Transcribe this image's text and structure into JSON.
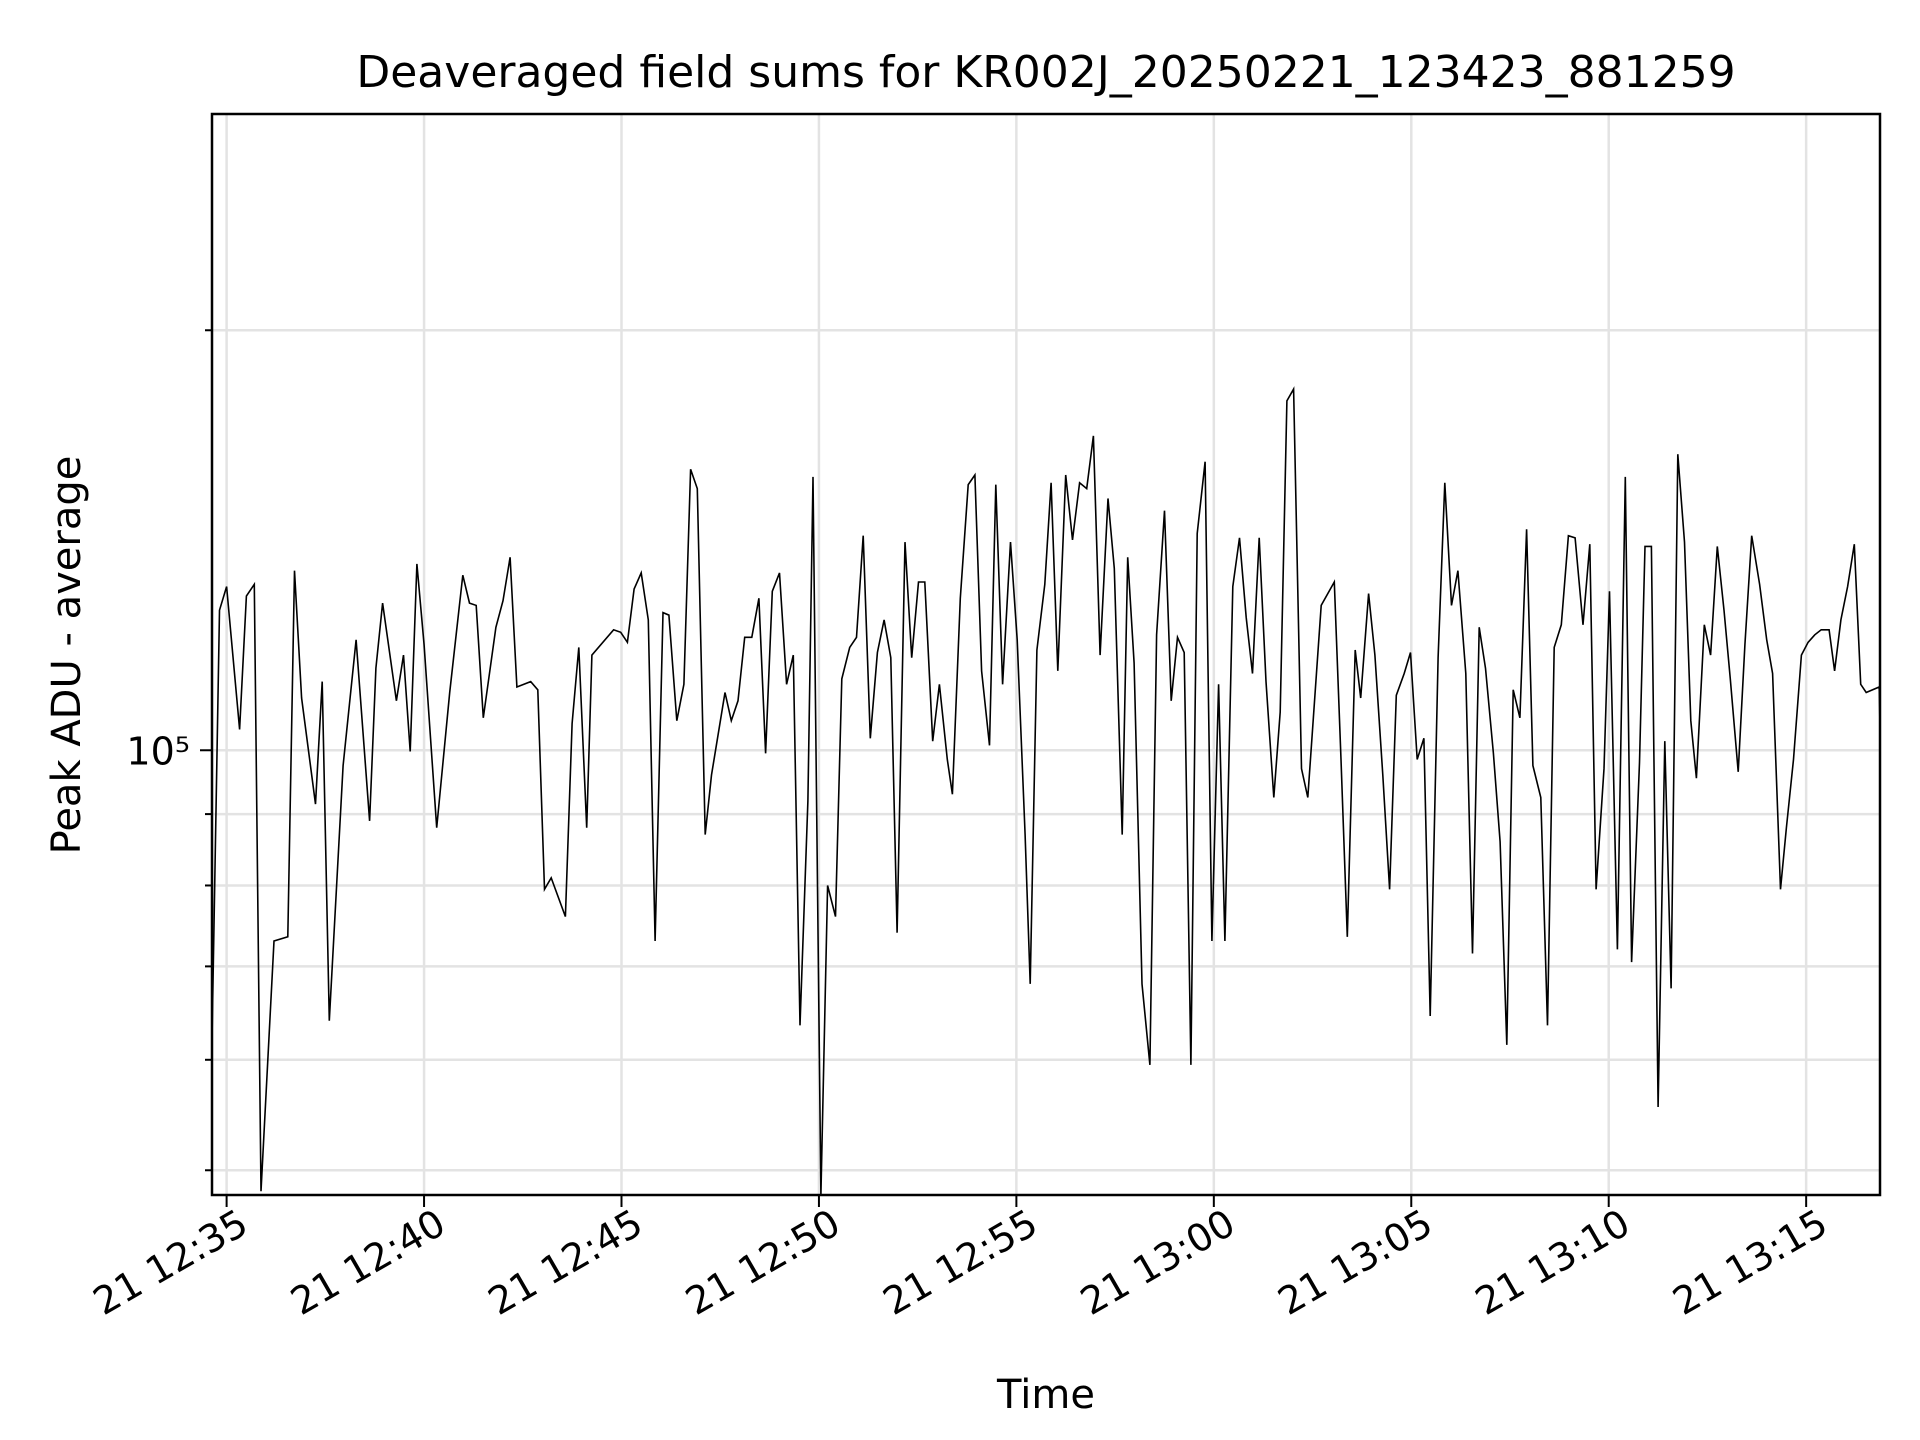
{
  "chart_data": {
    "type": "line",
    "title": "Deaveraged field sums for KR002J_20250221_123423_881259",
    "xlabel": "Time",
    "ylabel": "Peak ADU - average",
    "y_scale": "log",
    "grid": true,
    "x_tick_labels": [
      "21 12:35",
      "21 12:40",
      "21 12:45",
      "21 12:50",
      "21 12:55",
      "21 13:00",
      "21 13:05",
      "21 13:10",
      "21 13:15"
    ],
    "x_tick_minutes": [
      35,
      40,
      45,
      50,
      55,
      60,
      65,
      70,
      75
    ],
    "xlim_minutes": [
      34.63,
      76.87
    ],
    "y_tick_label": "10⁵",
    "y_tick_value": 100000,
    "ylim": [
      48000,
      200000
    ],
    "y_minor_ticks": [
      50000,
      60000,
      70000,
      80000,
      90000,
      200000
    ],
    "y_minor_visible": [
      50000,
      60000,
      70000,
      80000,
      90000,
      200000,
      300000,
      400000,
      500000
    ],
    "series": [
      {
        "color": "#000000",
        "points": [
          [
            34.63,
            62000
          ],
          [
            34.82,
            126000
          ],
          [
            35.0,
            131000
          ],
          [
            35.33,
            103500
          ],
          [
            35.5,
            129000
          ],
          [
            35.7,
            131500
          ],
          [
            35.87,
            48300
          ],
          [
            36.2,
            73000
          ],
          [
            36.55,
            73500
          ],
          [
            36.72,
            134500
          ],
          [
            36.9,
            109000
          ],
          [
            37.25,
            91500
          ],
          [
            37.42,
            112000
          ],
          [
            37.6,
            64000
          ],
          [
            37.95,
            97500
          ],
          [
            38.28,
            120000
          ],
          [
            38.62,
            89000
          ],
          [
            38.78,
            114500
          ],
          [
            38.95,
            127500
          ],
          [
            39.3,
            108500
          ],
          [
            39.48,
            117000
          ],
          [
            39.65,
            99800
          ],
          [
            39.82,
            136000
          ],
          [
            40.0,
            119000
          ],
          [
            40.32,
            88000
          ],
          [
            40.65,
            110000
          ],
          [
            40.98,
            133500
          ],
          [
            41.15,
            127500
          ],
          [
            41.32,
            127000
          ],
          [
            41.5,
            105500
          ],
          [
            41.82,
            122500
          ],
          [
            42.0,
            128000
          ],
          [
            42.18,
            137500
          ],
          [
            42.35,
            111000
          ],
          [
            42.7,
            112000
          ],
          [
            42.88,
            110500
          ],
          [
            43.05,
            79500
          ],
          [
            43.22,
            81000
          ],
          [
            43.58,
            76000
          ],
          [
            43.75,
            104500
          ],
          [
            43.92,
            118500
          ],
          [
            44.12,
            88000
          ],
          [
            44.25,
            117000
          ],
          [
            44.8,
            122000
          ],
          [
            44.98,
            121500
          ],
          [
            45.15,
            119500
          ],
          [
            45.32,
            130500
          ],
          [
            45.5,
            134000
          ],
          [
            45.68,
            124000
          ],
          [
            45.85,
            73000
          ],
          [
            46.05,
            125500
          ],
          [
            46.2,
            125000
          ],
          [
            46.4,
            105000
          ],
          [
            46.58,
            111500
          ],
          [
            46.75,
            159000
          ],
          [
            46.92,
            154000
          ],
          [
            47.12,
            87000
          ],
          [
            47.28,
            96000
          ],
          [
            47.62,
            110000
          ],
          [
            47.78,
            105000
          ],
          [
            47.95,
            108500
          ],
          [
            48.12,
            120500
          ],
          [
            48.3,
            120500
          ],
          [
            48.48,
            128500
          ],
          [
            48.65,
            99500
          ],
          [
            48.82,
            130000
          ],
          [
            49.0,
            134000
          ],
          [
            49.18,
            111500
          ],
          [
            49.35,
            117000
          ],
          [
            49.52,
            63500
          ],
          [
            49.72,
            92000
          ],
          [
            49.85,
            157000
          ],
          [
            50.05,
            48000
          ],
          [
            50.22,
            80000
          ],
          [
            50.42,
            76000
          ],
          [
            50.58,
            112500
          ],
          [
            50.78,
            118500
          ],
          [
            50.95,
            120500
          ],
          [
            51.12,
            142500
          ],
          [
            51.3,
            102000
          ],
          [
            51.48,
            117500
          ],
          [
            51.65,
            124000
          ],
          [
            51.82,
            116500
          ],
          [
            51.98,
            74000
          ],
          [
            52.18,
            141000
          ],
          [
            52.35,
            116500
          ],
          [
            52.52,
            132000
          ],
          [
            52.68,
            132000
          ],
          [
            52.88,
            101500
          ],
          [
            53.05,
            111500
          ],
          [
            53.25,
            98500
          ],
          [
            53.38,
            93000
          ],
          [
            53.58,
            128500
          ],
          [
            53.78,
            155000
          ],
          [
            53.95,
            157500
          ],
          [
            54.12,
            114000
          ],
          [
            54.32,
            100800
          ],
          [
            54.48,
            155000
          ],
          [
            54.65,
            111500
          ],
          [
            54.85,
            141000
          ],
          [
            55.02,
            120000
          ],
          [
            55.22,
            87000
          ],
          [
            55.35,
            68000
          ],
          [
            55.52,
            118000
          ],
          [
            55.72,
            131500
          ],
          [
            55.88,
            155500
          ],
          [
            56.05,
            114000
          ],
          [
            56.25,
            157500
          ],
          [
            56.42,
            141500
          ],
          [
            56.6,
            155500
          ],
          [
            56.78,
            154000
          ],
          [
            56.95,
            168000
          ],
          [
            57.12,
            117000
          ],
          [
            57.32,
            151500
          ],
          [
            57.48,
            135000
          ],
          [
            57.68,
            87000
          ],
          [
            57.82,
            137500
          ],
          [
            57.98,
            115500
          ],
          [
            58.18,
            68000
          ],
          [
            58.38,
            59500
          ],
          [
            58.55,
            121000
          ],
          [
            58.75,
            148500
          ],
          [
            58.92,
            108500
          ],
          [
            59.08,
            120500
          ],
          [
            59.25,
            117500
          ],
          [
            59.42,
            59500
          ],
          [
            59.58,
            143000
          ],
          [
            59.78,
            161000
          ],
          [
            59.95,
            73000
          ],
          [
            60.12,
            111500
          ],
          [
            60.28,
            73000
          ],
          [
            60.48,
            131000
          ],
          [
            60.65,
            142000
          ],
          [
            60.82,
            124500
          ],
          [
            60.98,
            113500
          ],
          [
            61.15,
            142000
          ],
          [
            61.32,
            112000
          ],
          [
            61.52,
            92500
          ],
          [
            61.68,
            106500
          ],
          [
            61.85,
            178000
          ],
          [
            62.02,
            181500
          ],
          [
            62.22,
            97000
          ],
          [
            62.38,
            92500
          ],
          [
            62.72,
            127000
          ],
          [
            63.05,
            132000
          ],
          [
            63.22,
            98500
          ],
          [
            63.38,
            73500
          ],
          [
            63.58,
            118000
          ],
          [
            63.72,
            109000
          ],
          [
            63.92,
            129500
          ],
          [
            64.08,
            117000
          ],
          [
            64.28,
            96000
          ],
          [
            64.45,
            79500
          ],
          [
            64.62,
            109500
          ],
          [
            64.82,
            113500
          ],
          [
            64.98,
            117500
          ],
          [
            65.15,
            98500
          ],
          [
            65.32,
            102000
          ],
          [
            65.48,
            64500
          ],
          [
            65.68,
            116500
          ],
          [
            65.85,
            155500
          ],
          [
            66.02,
            127000
          ],
          [
            66.18,
            134500
          ],
          [
            66.38,
            113500
          ],
          [
            66.55,
            71500
          ],
          [
            66.72,
            122500
          ],
          [
            66.88,
            114500
          ],
          [
            67.08,
            99500
          ],
          [
            67.25,
            86000
          ],
          [
            67.42,
            61500
          ],
          [
            67.58,
            110500
          ],
          [
            67.75,
            105500
          ],
          [
            67.92,
            144000
          ],
          [
            68.08,
            97500
          ],
          [
            68.28,
            92500
          ],
          [
            68.45,
            63500
          ],
          [
            68.62,
            118500
          ],
          [
            68.8,
            123000
          ],
          [
            68.98,
            142500
          ],
          [
            69.15,
            142000
          ],
          [
            69.35,
            123000
          ],
          [
            69.52,
            140500
          ],
          [
            69.68,
            79500
          ],
          [
            69.88,
            97000
          ],
          [
            70.02,
            130000
          ],
          [
            70.22,
            72000
          ],
          [
            70.42,
            157000
          ],
          [
            70.58,
            70500
          ],
          [
            70.78,
            98000
          ],
          [
            70.92,
            140000
          ],
          [
            71.08,
            140000
          ],
          [
            71.25,
            55500
          ],
          [
            71.42,
            101500
          ],
          [
            71.58,
            67500
          ],
          [
            71.75,
            163000
          ],
          [
            71.92,
            141000
          ],
          [
            72.08,
            105000
          ],
          [
            72.22,
            95500
          ],
          [
            72.42,
            123000
          ],
          [
            72.58,
            117000
          ],
          [
            72.75,
            140000
          ],
          [
            72.92,
            126000
          ],
          [
            73.08,
            112500
          ],
          [
            73.28,
            96500
          ],
          [
            73.45,
            119000
          ],
          [
            73.62,
            142500
          ],
          [
            73.82,
            131500
          ],
          [
            74.0,
            120000
          ],
          [
            74.15,
            113500
          ],
          [
            74.35,
            79500
          ],
          [
            74.5,
            88000
          ],
          [
            74.68,
            98500
          ],
          [
            74.88,
            117000
          ],
          [
            75.05,
            119500
          ],
          [
            75.22,
            121000
          ],
          [
            75.38,
            122000
          ],
          [
            75.58,
            122000
          ],
          [
            75.72,
            114000
          ],
          [
            75.88,
            124000
          ],
          [
            76.05,
            131000
          ],
          [
            76.22,
            140500
          ],
          [
            76.38,
            111500
          ],
          [
            76.52,
            110000
          ],
          [
            76.85,
            111000
          ],
          [
            76.87,
            104000
          ]
        ]
      }
    ]
  }
}
